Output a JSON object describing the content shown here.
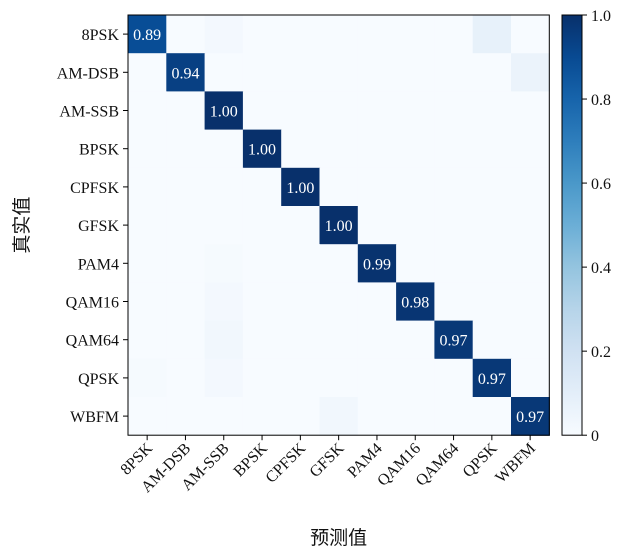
{
  "chart_data": {
    "type": "heatmap",
    "title": "",
    "xlabel": "预测值",
    "ylabel": "真实值",
    "x_categories": [
      "8PSK",
      "AM-DSB",
      "AM-SSB",
      "BPSK",
      "CPFSK",
      "GFSK",
      "PAM4",
      "QAM16",
      "QAM64",
      "QPSK",
      "WBFM"
    ],
    "y_categories": [
      "8PSK",
      "AM-DSB",
      "AM-SSB",
      "BPSK",
      "CPFSK",
      "GFSK",
      "PAM4",
      "QAM16",
      "QAM64",
      "QPSK",
      "WBFM"
    ],
    "values": [
      [
        0.89,
        0.0,
        0.02,
        0.0,
        0.0,
        0.0,
        0.0,
        0.0,
        0.0,
        0.08,
        0.0
      ],
      [
        0.0,
        0.94,
        0.0,
        0.0,
        0.0,
        0.0,
        0.0,
        0.0,
        0.0,
        0.0,
        0.06
      ],
      [
        0.0,
        0.0,
        1.0,
        0.0,
        0.0,
        0.0,
        0.0,
        0.0,
        0.0,
        0.0,
        0.0
      ],
      [
        0.0,
        0.0,
        0.0,
        1.0,
        0.0,
        0.0,
        0.0,
        0.0,
        0.0,
        0.0,
        0.0
      ],
      [
        0.0,
        0.0,
        0.0,
        0.0,
        1.0,
        0.0,
        0.0,
        0.0,
        0.0,
        0.0,
        0.0
      ],
      [
        0.0,
        0.0,
        0.0,
        0.0,
        0.0,
        1.0,
        0.0,
        0.0,
        0.0,
        0.0,
        0.0
      ],
      [
        0.0,
        0.0,
        0.01,
        0.0,
        0.0,
        0.0,
        0.99,
        0.0,
        0.0,
        0.0,
        0.0
      ],
      [
        0.0,
        0.0,
        0.02,
        0.0,
        0.0,
        0.0,
        0.0,
        0.98,
        0.0,
        0.0,
        0.0
      ],
      [
        0.0,
        0.0,
        0.03,
        0.0,
        0.0,
        0.0,
        0.0,
        0.0,
        0.97,
        0.0,
        0.0
      ],
      [
        0.01,
        0.0,
        0.02,
        0.0,
        0.0,
        0.0,
        0.0,
        0.0,
        0.0,
        0.97,
        0.0
      ],
      [
        0.0,
        0.0,
        0.0,
        0.0,
        0.0,
        0.03,
        0.0,
        0.0,
        0.0,
        0.0,
        0.97
      ]
    ],
    "annotations": [
      {
        "row": 0,
        "col": 0,
        "text": "0.89"
      },
      {
        "row": 1,
        "col": 1,
        "text": "0.94"
      },
      {
        "row": 2,
        "col": 2,
        "text": "1.00"
      },
      {
        "row": 3,
        "col": 3,
        "text": "1.00"
      },
      {
        "row": 4,
        "col": 4,
        "text": "1.00"
      },
      {
        "row": 5,
        "col": 5,
        "text": "1.00"
      },
      {
        "row": 6,
        "col": 6,
        "text": "0.99"
      },
      {
        "row": 7,
        "col": 7,
        "text": "0.98"
      },
      {
        "row": 8,
        "col": 8,
        "text": "0.97"
      },
      {
        "row": 9,
        "col": 9,
        "text": "0.97"
      },
      {
        "row": 10,
        "col": 10,
        "text": "0.97"
      }
    ],
    "colorbar": {
      "min": 0,
      "max": 1.0,
      "ticks": [
        0,
        0.2,
        0.4,
        0.6,
        0.8,
        1.0
      ],
      "tick_labels": [
        "0",
        "0.2",
        "0.4",
        "0.6",
        "0.8",
        "1.0"
      ]
    },
    "colormap": "Blues",
    "colors": {
      "low": "#f7fbff",
      "high": "#08306b"
    },
    "grid": false
  }
}
